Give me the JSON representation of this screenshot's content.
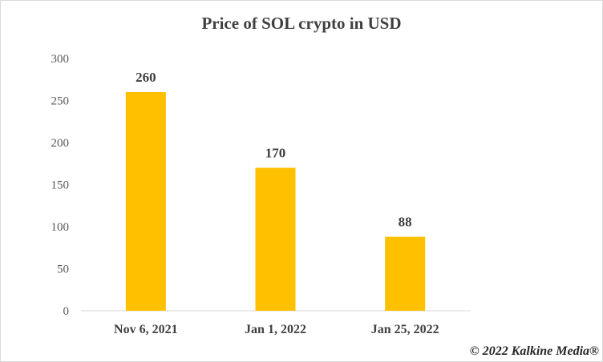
{
  "chart_data": {
    "type": "bar",
    "title": "Price of SOL crypto in USD",
    "categories": [
      "Nov 6, 2021",
      "Jan 1, 2022",
      "Jan 25, 2022"
    ],
    "values": [
      260,
      170,
      88
    ],
    "data_labels": [
      "260",
      "170",
      "88"
    ],
    "ylim": [
      0,
      300
    ],
    "yticks": [
      0,
      50,
      100,
      150,
      200,
      250,
      300
    ],
    "xlabel": "",
    "ylabel": "",
    "grid": false,
    "legend": "none",
    "bar_color": "#FFC000"
  },
  "footer": {
    "copyright": "© 2022 Kalkine Media®"
  }
}
